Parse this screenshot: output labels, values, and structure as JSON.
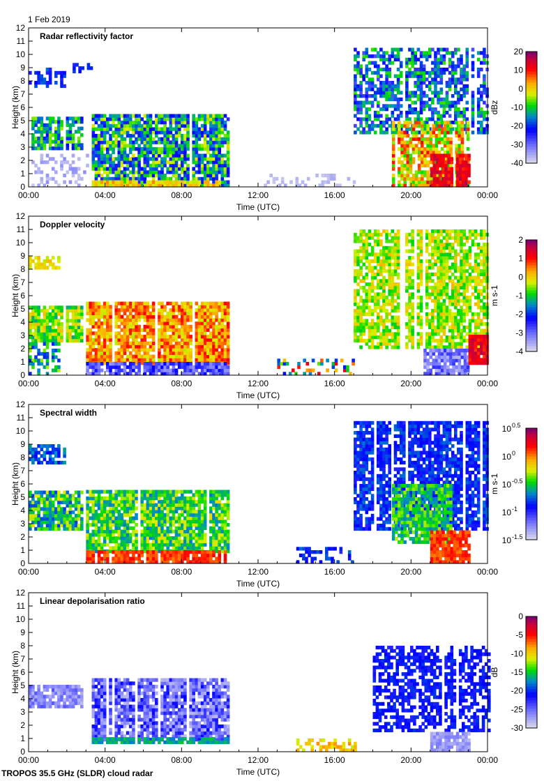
{
  "date": "1 Feb 2019",
  "footer": "TROPOS 35.5 GHz (SLDR) cloud radar",
  "chart_data": [
    {
      "type": "heatmap",
      "title": "Radar reflectivity factor",
      "xlabel": "Time (UTC)",
      "ylabel": "Height (km)",
      "xlim": [
        0,
        24
      ],
      "ylim": [
        0,
        12
      ],
      "xticks": [
        "00:00",
        "04:00",
        "08:00",
        "12:00",
        "16:00",
        "20:00",
        "00:00"
      ],
      "yticks": [
        0,
        1,
        2,
        3,
        4,
        5,
        6,
        7,
        8,
        9,
        10,
        11,
        12
      ],
      "colorbar": {
        "label": "dBz",
        "ticks": [
          "20",
          "10",
          "0",
          "-10",
          "-20",
          "-30",
          "-40"
        ],
        "range": [
          -40,
          20
        ]
      },
      "echo_regions": [
        [
          0,
          2.8,
          2.8,
          5.2,
          0.3,
          0.6,
          0.8
        ],
        [
          0,
          1.8,
          7.5,
          8.8,
          0.25,
          0.4,
          0.6
        ],
        [
          2.3,
          3.3,
          8.6,
          9.2,
          0.25,
          0.35,
          0.5
        ],
        [
          0,
          3,
          0,
          2.5,
          0.03,
          0.12,
          0.35
        ],
        [
          3.3,
          10.5,
          0,
          5.3,
          0.25,
          0.65,
          0.85
        ],
        [
          3.3,
          10,
          0,
          0.5,
          0.6,
          0.75,
          0.9
        ],
        [
          12,
          17,
          0,
          0.8,
          0.03,
          0.08,
          0.25
        ],
        [
          17,
          24,
          4,
          10.5,
          0.2,
          0.55,
          0.6
        ],
        [
          19,
          23,
          0,
          5,
          0.5,
          0.85,
          0.8
        ],
        [
          21,
          23,
          0,
          2.5,
          0.8,
          0.95,
          0.9
        ]
      ]
    },
    {
      "type": "heatmap",
      "title": "Doppler velocity",
      "xlabel": "Time (UTC)",
      "ylabel": "Height (km)",
      "xlim": [
        0,
        24
      ],
      "ylim": [
        0,
        12
      ],
      "xticks": [
        "00:00",
        "04:00",
        "08:00",
        "12:00",
        "16:00",
        "20:00",
        "00:00"
      ],
      "yticks": [
        0,
        1,
        2,
        3,
        4,
        5,
        6,
        7,
        8,
        9,
        10,
        11,
        12
      ],
      "colorbar": {
        "label": "m s-1",
        "ticks": [
          "2",
          "1",
          "0",
          "-1",
          "-2",
          "-3",
          "-4"
        ],
        "range": [
          -4,
          2
        ]
      },
      "echo_regions": [
        [
          0,
          2.8,
          2.5,
          5.2,
          0.45,
          0.7,
          0.85
        ],
        [
          0,
          1.5,
          0,
          2.5,
          0.3,
          0.6,
          0.5
        ],
        [
          0,
          1.5,
          8,
          9,
          0.6,
          0.7,
          0.6
        ],
        [
          3,
          10.5,
          0.8,
          5.4,
          0.6,
          0.85,
          0.9
        ],
        [
          3,
          10.5,
          0,
          0.8,
          0.1,
          0.3,
          0.9
        ],
        [
          13,
          17,
          0,
          1.2,
          0.3,
          0.9,
          0.3
        ],
        [
          17,
          24,
          2,
          10.8,
          0.5,
          0.7,
          0.75
        ],
        [
          20.5,
          23,
          0,
          2,
          0.05,
          0.25,
          0.85
        ],
        [
          23,
          24,
          0.8,
          3,
          0.8,
          0.95,
          0.9
        ]
      ]
    },
    {
      "type": "heatmap",
      "title": "Spectral width",
      "xlabel": "Time (UTC)",
      "ylabel": "Height (km)",
      "xlim": [
        0,
        24
      ],
      "ylim": [
        0,
        12
      ],
      "xticks": [
        "00:00",
        "04:00",
        "08:00",
        "12:00",
        "16:00",
        "20:00",
        "00:00"
      ],
      "yticks": [
        0,
        1,
        2,
        3,
        4,
        5,
        6,
        7,
        8,
        9,
        10,
        11,
        12
      ],
      "colorbar": {
        "label": "m s-1",
        "ticks": [
          "10^0.5",
          "10^0",
          "10^-0.5",
          "10^-1",
          "10^-1.5"
        ],
        "range": [
          -1.5,
          0.5
        ],
        "log": true
      },
      "echo_regions": [
        [
          0,
          2.8,
          2.5,
          5.3,
          0.35,
          0.65,
          0.85
        ],
        [
          0,
          1.8,
          7.5,
          8.8,
          0.3,
          0.45,
          0.6
        ],
        [
          3,
          10.5,
          0.8,
          5.5,
          0.4,
          0.65,
          0.9
        ],
        [
          3,
          10.5,
          0,
          0.8,
          0.75,
          0.85,
          0.9
        ],
        [
          14,
          17,
          0,
          1.2,
          0.25,
          0.4,
          0.35
        ],
        [
          17,
          24,
          2.5,
          10.7,
          0.25,
          0.4,
          0.8
        ],
        [
          19,
          22,
          1.5,
          6,
          0.4,
          0.6,
          0.8
        ],
        [
          21,
          23,
          0,
          2.5,
          0.75,
          0.85,
          0.9
        ]
      ]
    },
    {
      "type": "heatmap",
      "title": "Linear depolarisation ratio",
      "xlabel": "Time (UTC)",
      "ylabel": "Height (km)",
      "xlim": [
        0,
        24
      ],
      "ylim": [
        0,
        12
      ],
      "xticks": [
        "00:00",
        "04:00",
        "08:00",
        "12:00",
        "16:00",
        "20:00",
        "00:00"
      ],
      "yticks": [
        0,
        1,
        2,
        3,
        4,
        5,
        6,
        7,
        8,
        9,
        10,
        11,
        12
      ],
      "colorbar": {
        "label": "dB",
        "ticks": [
          "0",
          "-5",
          "-10",
          "-15",
          "-20",
          "-25",
          "-30"
        ],
        "range": [
          -30,
          0
        ]
      },
      "echo_regions": [
        [
          0,
          2.8,
          3.3,
          5,
          0.05,
          0.2,
          0.8
        ],
        [
          3.3,
          10.5,
          0.8,
          5.4,
          0.05,
          0.3,
          0.85
        ],
        [
          3.3,
          10.5,
          0.6,
          0.9,
          0.4,
          0.5,
          0.9
        ],
        [
          14,
          17,
          0,
          1,
          0.6,
          0.75,
          0.4
        ],
        [
          18,
          24,
          1.5,
          8,
          0.25,
          0.35,
          0.6
        ],
        [
          21,
          23,
          0,
          1.5,
          0.05,
          0.15,
          0.8
        ]
      ]
    }
  ]
}
